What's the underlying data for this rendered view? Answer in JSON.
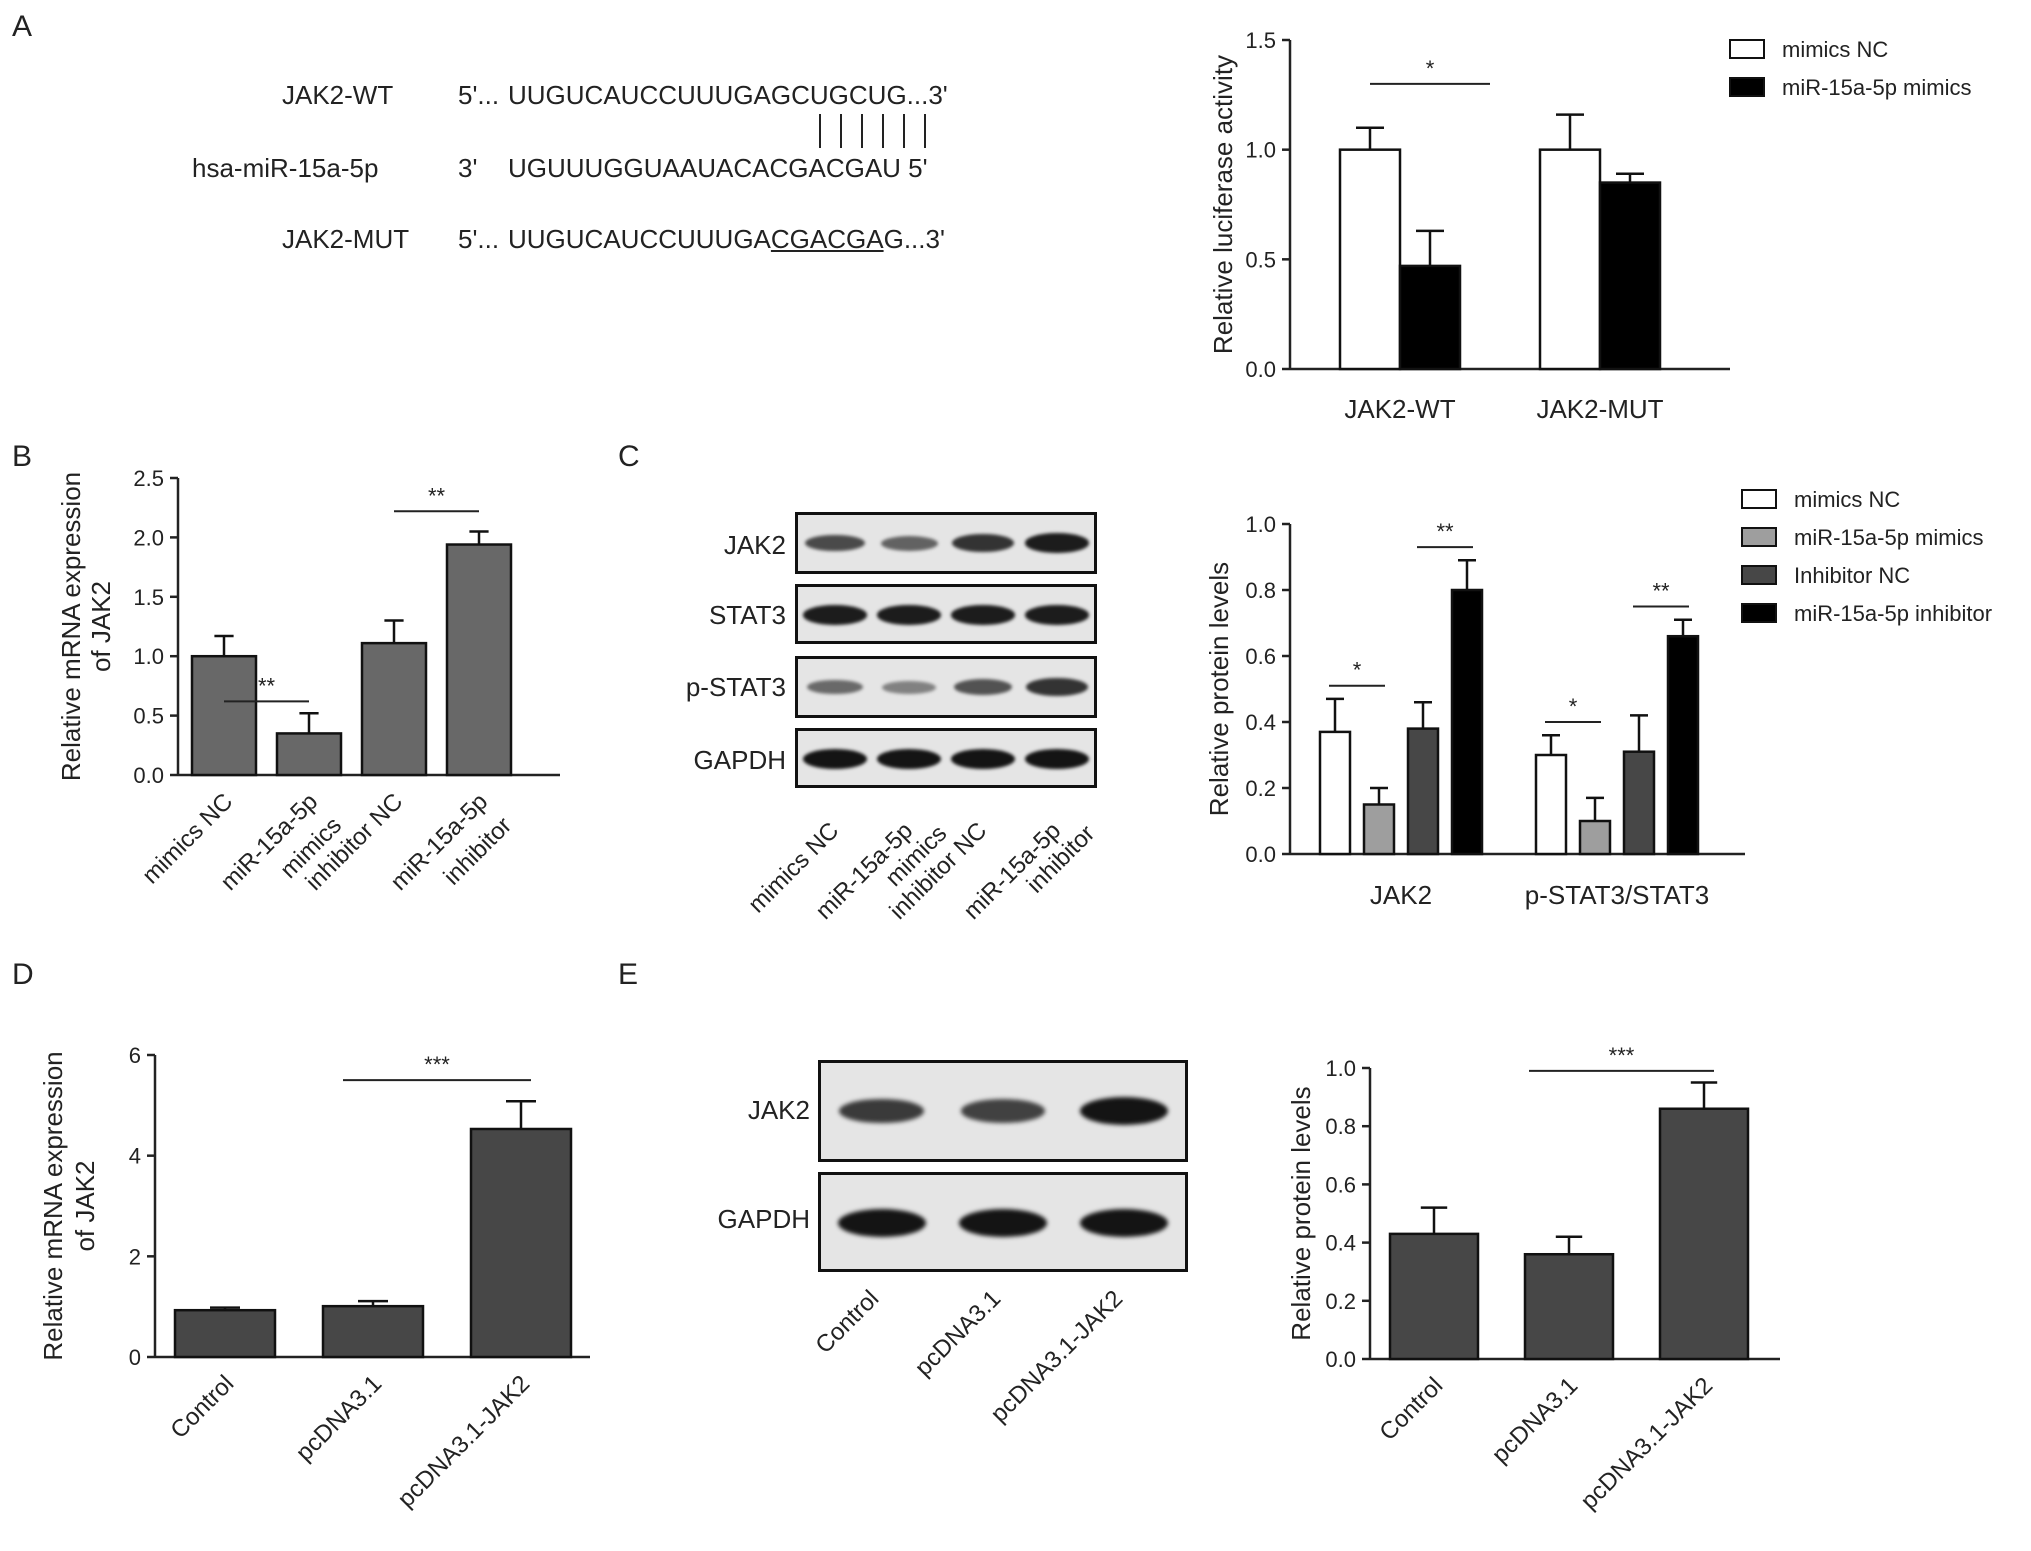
{
  "panel_labels": {
    "A": "A",
    "B": "B",
    "C": "C",
    "D": "D",
    "E": "E"
  },
  "sequence_panel": {
    "rows": [
      {
        "name": "JAK2-WT",
        "prefix": "5'...",
        "seq": "UUGUCAUCCUUUGAGCUGCUG...3'"
      },
      {
        "name": "hsa-miR-15a-5p",
        "prefix": "3'",
        "seq": "UGUUUGGUAAUACACGACGAU 5'"
      },
      {
        "name": "JAK2-MUT",
        "prefix": "5'...",
        "seq_start": "UUGUCAUCCUUUGA",
        "seq_mut": "CGACGA",
        "seq_end": "G...3'"
      }
    ]
  },
  "blots": {
    "C": {
      "rows": [
        "JAK2",
        "STAT3",
        "p-STAT3",
        "GAPDH"
      ],
      "lanes": [
        "mimics NC",
        "miR-15a-5p mimics",
        "inhibitor NC",
        "miR-15a-5p inhibitor"
      ],
      "band_intensity": [
        [
          0.65,
          0.5,
          0.8,
          0.95
        ],
        [
          0.95,
          0.95,
          0.95,
          0.95
        ],
        [
          0.45,
          0.3,
          0.6,
          0.8
        ],
        [
          1.0,
          1.0,
          1.0,
          1.0
        ]
      ]
    },
    "E": {
      "rows": [
        "JAK2",
        "GAPDH"
      ],
      "lanes": [
        "Control",
        "pcDNA3.1",
        "pcDNA3.1-JAK2"
      ],
      "band_intensity": [
        [
          0.75,
          0.7,
          1.0
        ],
        [
          1.0,
          1.0,
          1.0
        ]
      ]
    }
  },
  "colors": {
    "gray1": "#686868",
    "gray_light": "#9e9e9e",
    "gray_dark": "#474747",
    "black": "#000000",
    "white": "#ffffff"
  },
  "chart_data": [
    {
      "id": "A",
      "type": "bar",
      "categories": [
        "JAK2-WT",
        "JAK2-MUT"
      ],
      "series": [
        {
          "name": "mimics NC",
          "values": [
            1.0,
            1.0
          ],
          "errors": [
            0.1,
            0.16
          ],
          "color": "#ffffff"
        },
        {
          "name": "miR-15a-5p mimics",
          "values": [
            0.47,
            0.85
          ],
          "errors": [
            0.16,
            0.04
          ],
          "color": "#000000"
        }
      ],
      "ylabel": "Relative luciferase activity",
      "ylim": [
        0,
        1.5
      ],
      "yticks": [
        "0.0",
        "0.5",
        "1.0",
        "1.5"
      ],
      "significance": [
        {
          "category": 0,
          "text": "*"
        }
      ],
      "legend_position": "top-right",
      "x_tick_rotation": 0
    },
    {
      "id": "B",
      "type": "bar",
      "categories": [
        "mimics NC",
        "miR-15a-5p mimics",
        "inhibitor NC",
        "miR-15a-5p inhibitor"
      ],
      "category_lines": [
        [
          "mimics NC"
        ],
        [
          "miR-15a-5p",
          "mimics"
        ],
        [
          "inhibitor NC"
        ],
        [
          "miR-15a-5p",
          "inhibitor"
        ]
      ],
      "series": [
        {
          "name": "",
          "values": [
            1.0,
            0.35,
            1.11,
            1.94
          ],
          "errors": [
            0.17,
            0.17,
            0.19,
            0.11
          ],
          "color": "#686868"
        }
      ],
      "ylabel_lines": [
        "Relative mRNA expression",
        "of JAK2"
      ],
      "ylim": [
        0,
        2.5
      ],
      "yticks": [
        "0.0",
        "0.5",
        "1.0",
        "1.5",
        "2.0",
        "2.5"
      ],
      "significance": [
        {
          "from": 0,
          "to": 1,
          "text": "**"
        },
        {
          "from": 2,
          "to": 3,
          "text": "**"
        }
      ],
      "x_tick_rotation": -45
    },
    {
      "id": "C",
      "type": "bar",
      "categories": [
        "JAK2",
        "p-STAT3/STAT3"
      ],
      "series": [
        {
          "name": "mimics NC",
          "values": [
            0.37,
            0.3
          ],
          "errors": [
            0.1,
            0.06
          ],
          "color": "#ffffff"
        },
        {
          "name": "miR-15a-5p mimics",
          "values": [
            0.15,
            0.1
          ],
          "errors": [
            0.05,
            0.07
          ],
          "color": "#9e9e9e"
        },
        {
          "name": "Inhibitor NC",
          "values": [
            0.38,
            0.31
          ],
          "errors": [
            0.08,
            0.11
          ],
          "color": "#474747"
        },
        {
          "name": "miR-15a-5p inhibitor",
          "values": [
            0.8,
            0.66
          ],
          "errors": [
            0.09,
            0.05
          ],
          "color": "#000000"
        }
      ],
      "ylabel": "Relative protein levels",
      "ylim": [
        0,
        1.0
      ],
      "yticks": [
        "0.0",
        "0.2",
        "0.4",
        "0.6",
        "0.8",
        "1.0"
      ],
      "significance": [
        {
          "category": 0,
          "s_from": 0,
          "s_to": 1,
          "text": "*"
        },
        {
          "category": 0,
          "s_from": 2,
          "s_to": 3,
          "text": "**"
        },
        {
          "category": 1,
          "s_from": 0,
          "s_to": 1,
          "text": "*"
        },
        {
          "category": 1,
          "s_from": 2,
          "s_to": 3,
          "text": "**"
        }
      ],
      "legend_position": "top-right",
      "x_tick_rotation": 0
    },
    {
      "id": "D",
      "type": "bar",
      "categories": [
        "Control",
        "pcDNA3.1",
        "pcDNA3.1-JAK2"
      ],
      "series": [
        {
          "name": "",
          "values": [
            0.93,
            1.01,
            4.53
          ],
          "errors": [
            0.05,
            0.1,
            0.55
          ],
          "color": "#474747"
        }
      ],
      "ylabel_lines": [
        "Relative mRNA expression",
        "of JAK2"
      ],
      "ylim": [
        0,
        6
      ],
      "yticks": [
        "0",
        "2",
        "4",
        "6"
      ],
      "significance": [
        {
          "from": 1,
          "to": 2,
          "text": "***"
        }
      ],
      "x_tick_rotation": -45
    },
    {
      "id": "E",
      "type": "bar",
      "categories": [
        "Control",
        "pcDNA3.1",
        "pcDNA3.1-JAK2"
      ],
      "series": [
        {
          "name": "",
          "values": [
            0.43,
            0.36,
            0.86
          ],
          "errors": [
            0.09,
            0.06,
            0.09
          ],
          "color": "#474747"
        }
      ],
      "ylabel": "Relative protein levels",
      "ylim": [
        0,
        1.0
      ],
      "yticks": [
        "0.0",
        "0.2",
        "0.4",
        "0.6",
        "0.8",
        "1.0"
      ],
      "significance": [
        {
          "from": 1,
          "to": 2,
          "text": "***"
        }
      ],
      "x_tick_rotation": -45
    }
  ]
}
